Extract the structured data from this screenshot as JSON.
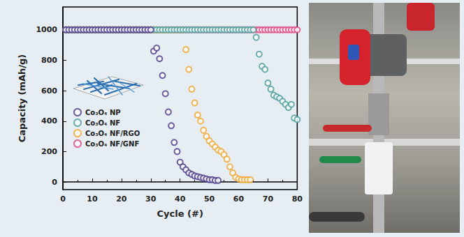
{
  "chart_data": {
    "type": "scatter",
    "x_label": "Cycle (#)",
    "y_label": "Capacity (mAh/g)",
    "x": [
      1,
      2,
      3,
      4,
      5,
      6,
      7,
      8,
      9,
      10,
      11,
      12,
      13,
      14,
      15,
      16,
      17,
      18,
      19,
      20,
      21,
      22,
      23,
      24,
      25,
      26,
      27,
      28,
      29,
      30,
      31,
      32,
      33,
      34,
      35,
      36,
      37,
      38,
      39,
      40,
      41,
      42,
      43,
      44,
      45,
      46,
      47,
      48,
      49,
      50,
      51,
      52,
      53,
      54,
      55,
      56,
      57,
      58,
      59,
      60,
      61,
      62,
      63,
      64,
      65,
      66,
      67,
      68,
      69,
      70,
      71,
      72,
      73,
      74,
      75,
      76,
      77,
      78,
      79,
      80
    ],
    "series": [
      {
        "name": "Co₃O₄ NP",
        "color": "#4a3a88",
        "values": [
          1000,
          1000,
          1000,
          1000,
          1000,
          1000,
          1000,
          1000,
          1000,
          1000,
          1000,
          1000,
          1000,
          1000,
          1000,
          1000,
          1000,
          1000,
          1000,
          1000,
          1000,
          1000,
          1000,
          1000,
          1000,
          1000,
          1000,
          1000,
          1000,
          1000,
          860,
          880,
          810,
          700,
          580,
          460,
          370,
          260,
          200,
          130,
          100,
          80,
          60,
          50,
          40,
          35,
          30,
          25,
          20,
          15,
          15,
          10,
          10,
          null,
          null,
          null,
          null,
          null,
          null,
          null,
          null,
          null,
          null,
          null,
          null,
          null,
          null,
          null,
          null,
          null,
          null,
          null,
          null,
          null,
          null,
          null,
          null,
          null,
          null,
          null
        ]
      },
      {
        "name": "Co₃O₄ NF",
        "color": "#4a9c9a",
        "values": [
          1000,
          1000,
          1000,
          1000,
          1000,
          1000,
          1000,
          1000,
          1000,
          1000,
          1000,
          1000,
          1000,
          1000,
          1000,
          1000,
          1000,
          1000,
          1000,
          1000,
          1000,
          1000,
          1000,
          1000,
          1000,
          1000,
          1000,
          1000,
          1000,
          1000,
          1000,
          1000,
          1000,
          1000,
          1000,
          1000,
          1000,
          1000,
          1000,
          1000,
          1000,
          1000,
          1000,
          1000,
          1000,
          1000,
          1000,
          1000,
          1000,
          1000,
          1000,
          1000,
          1000,
          1000,
          1000,
          1000,
          1000,
          1000,
          1000,
          1000,
          1000,
          1000,
          1000,
          1000,
          1000,
          950,
          840,
          760,
          740,
          650,
          610,
          570,
          560,
          550,
          530,
          510,
          490,
          510,
          420,
          410
        ]
      },
      {
        "name": "Co₃O₄ NF/RGO",
        "color": "#f0a52e",
        "values": [
          1000,
          1000,
          1000,
          1000,
          1000,
          1000,
          1000,
          1000,
          1000,
          1000,
          1000,
          1000,
          1000,
          1000,
          1000,
          1000,
          1000,
          1000,
          1000,
          1000,
          1000,
          1000,
          1000,
          1000,
          1000,
          1000,
          1000,
          1000,
          1000,
          1000,
          1000,
          1000,
          1000,
          1000,
          1000,
          1000,
          1000,
          1000,
          1000,
          1000,
          1000,
          870,
          740,
          610,
          520,
          440,
          400,
          340,
          300,
          270,
          250,
          230,
          210,
          200,
          180,
          150,
          100,
          60,
          30,
          20,
          15,
          15,
          15,
          15,
          null,
          null,
          null,
          null,
          null,
          null,
          null,
          null,
          null,
          null,
          null,
          null,
          null,
          null,
          null,
          null
        ]
      },
      {
        "name": "Co₃O₄ NF/GNF",
        "color": "#e23f7c",
        "values": [
          1000,
          1000,
          1000,
          1000,
          1000,
          1000,
          1000,
          1000,
          1000,
          1000,
          1000,
          1000,
          1000,
          1000,
          1000,
          1000,
          1000,
          1000,
          1000,
          1000,
          1000,
          1000,
          1000,
          1000,
          1000,
          1000,
          1000,
          1000,
          1000,
          1000,
          1000,
          1000,
          1000,
          1000,
          1000,
          1000,
          1000,
          1000,
          1000,
          1000,
          1000,
          1000,
          1000,
          1000,
          1000,
          1000,
          1000,
          1000,
          1000,
          1000,
          1000,
          1000,
          1000,
          1000,
          1000,
          1000,
          1000,
          1000,
          1000,
          1000,
          1000,
          1000,
          1000,
          1000,
          1000,
          1000,
          1000,
          1000,
          1000,
          1000,
          1000,
          1000,
          1000,
          1000,
          1000,
          1000,
          1000,
          1000,
          1000,
          1000
        ]
      }
    ],
    "xlim": [
      0,
      80
    ],
    "xticks": [
      0,
      10,
      20,
      30,
      40,
      50,
      60,
      70,
      80
    ],
    "ylim": [
      -50,
      1150
    ],
    "yticks": [
      0,
      200,
      400,
      600,
      800,
      1000
    ],
    "marker": "open_circle",
    "legend": "left",
    "grid": false
  }
}
